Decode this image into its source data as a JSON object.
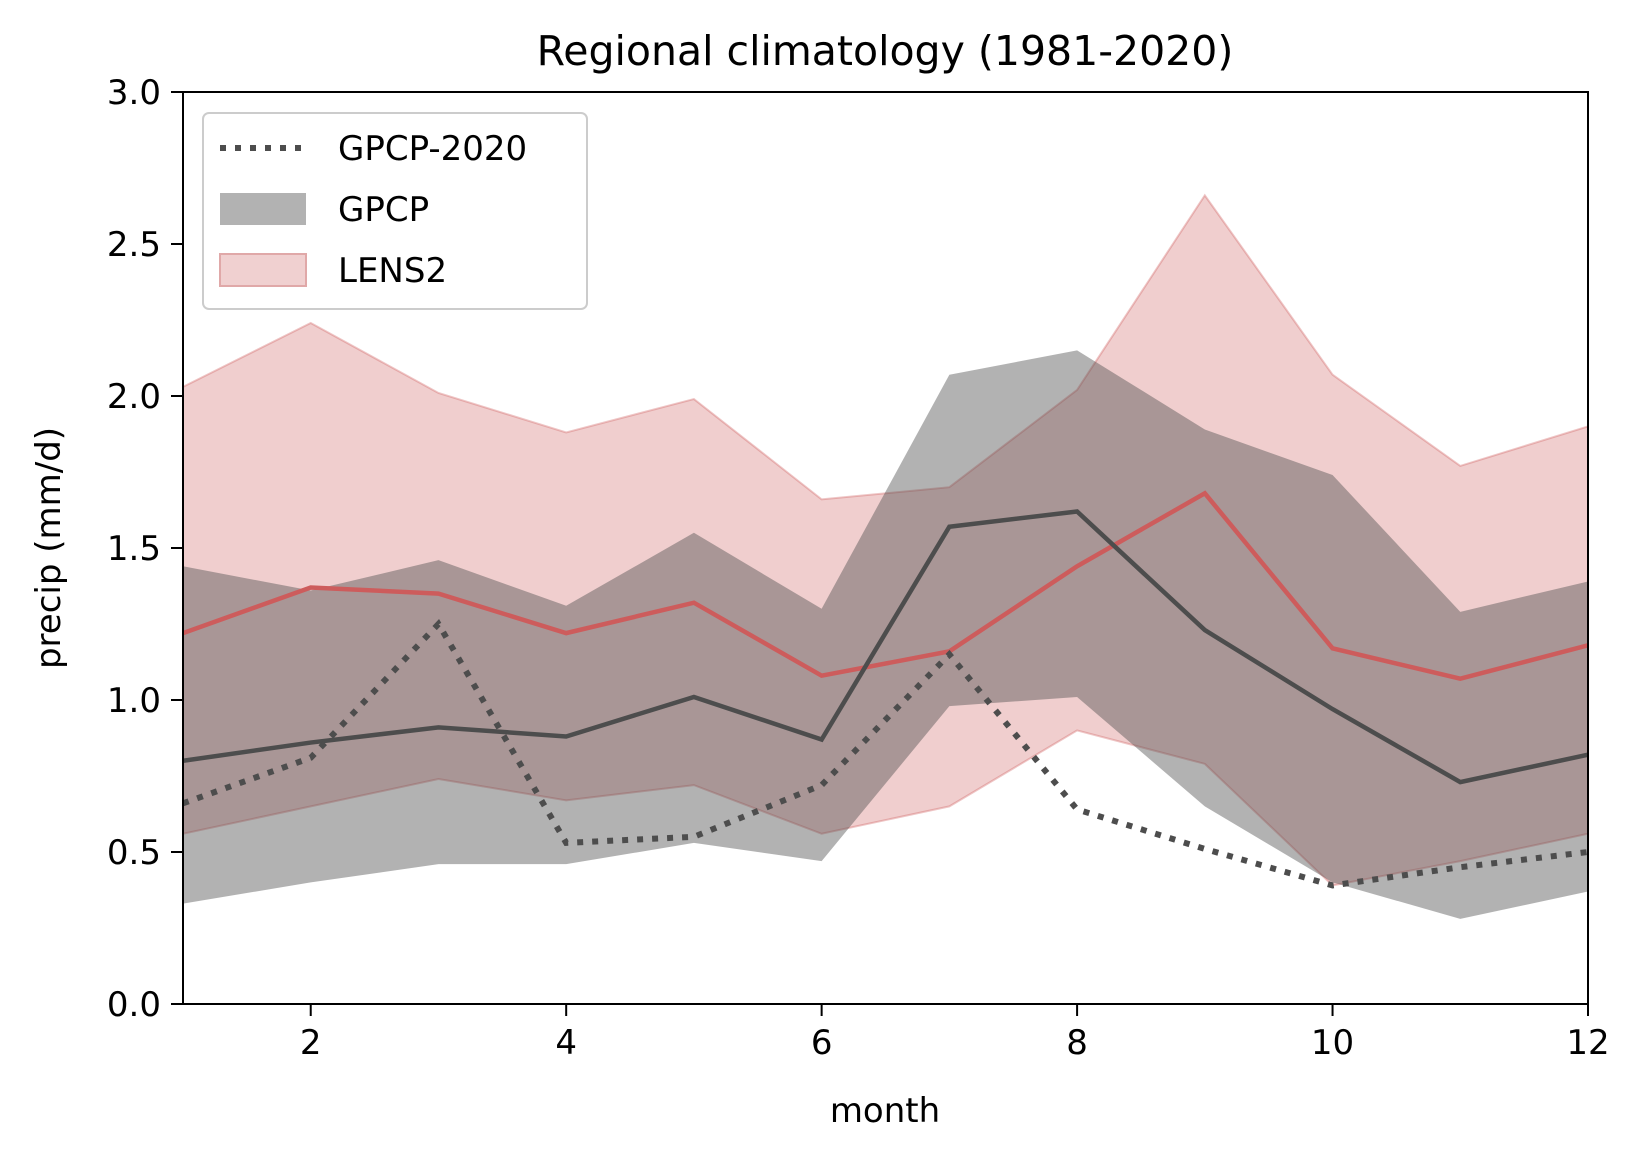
{
  "chart_data": {
    "type": "line",
    "title": "Regional climatology (1981-2020)",
    "xlabel": "month",
    "ylabel": "precip (mm/d)",
    "xlim": [
      1,
      12
    ],
    "ylim": [
      0,
      3
    ],
    "xticks": [
      2,
      4,
      6,
      8,
      10,
      12
    ],
    "yticks": [
      0.0,
      0.5,
      1.0,
      1.5,
      2.0,
      2.5,
      3.0
    ],
    "ytick_labels": [
      "0.0",
      "0.5",
      "1.0",
      "1.5",
      "2.0",
      "2.5",
      "3.0"
    ],
    "grid": false,
    "legend_position": "upper-left",
    "x": [
      1,
      2,
      3,
      4,
      5,
      6,
      7,
      8,
      9,
      10,
      11,
      12
    ],
    "bands": [
      {
        "name": "LENS2",
        "color": "#cd5c5c",
        "lower": [
          0.56,
          0.65,
          0.74,
          0.67,
          0.72,
          0.56,
          0.65,
          0.9,
          0.79,
          0.39,
          0.47,
          0.56
        ],
        "upper": [
          2.03,
          2.24,
          2.01,
          1.88,
          1.99,
          1.66,
          1.7,
          2.02,
          2.66,
          2.07,
          1.77,
          1.9
        ],
        "mean": [
          1.22,
          1.37,
          1.35,
          1.22,
          1.32,
          1.08,
          1.16,
          1.44,
          1.68,
          1.17,
          1.07,
          1.18
        ]
      },
      {
        "name": "GPCP",
        "color": "#4d4d4d",
        "lower": [
          0.33,
          0.4,
          0.46,
          0.46,
          0.53,
          0.47,
          0.98,
          1.01,
          0.65,
          0.4,
          0.28,
          0.37
        ],
        "upper": [
          1.44,
          1.36,
          1.46,
          1.31,
          1.55,
          1.3,
          2.07,
          2.15,
          1.89,
          1.74,
          1.29,
          1.39
        ],
        "mean": [
          0.8,
          0.86,
          0.91,
          0.88,
          1.01,
          0.87,
          1.57,
          1.62,
          1.23,
          0.97,
          0.73,
          0.82
        ]
      }
    ],
    "lines": [
      {
        "name": "GPCP-2020",
        "color": "#4d4d4d",
        "style": "dotted",
        "values": [
          0.66,
          0.81,
          1.25,
          0.53,
          0.55,
          0.72,
          1.15,
          0.64,
          0.51,
          0.39,
          0.45,
          0.5
        ]
      }
    ],
    "legend": [
      {
        "label": "GPCP-2020",
        "kind": "dotted-line",
        "color": "#4d4d4d"
      },
      {
        "label": "GPCP",
        "kind": "patch",
        "color": "#b2b2b2"
      },
      {
        "label": "LENS2",
        "kind": "patch",
        "color": "#f0d0d0"
      }
    ]
  }
}
